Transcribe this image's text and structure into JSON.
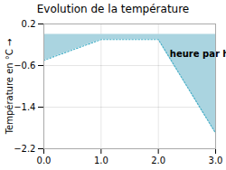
{
  "chart_data": {
    "type": "area",
    "title": "Evolution de la température",
    "y_label": "Température en °C",
    "x": [
      0,
      1,
      2,
      3
    ],
    "series": [
      {
        "type": "area",
        "color": "#aad4e0",
        "values": [
          -0.5,
          -0.1,
          -0.1,
          -1.9
        ]
      },
      {
        "type": "line",
        "color": "#4ab0c8",
        "line_style": "dotted",
        "values": [
          -0.5,
          -0.1,
          -0.1,
          -1.9
        ]
      }
    ],
    "xlim": [
      0,
      3
    ],
    "xticks": [
      0,
      1,
      2,
      3
    ],
    "ylim": [
      -2.2,
      0.2
    ],
    "yticks": [
      0.2,
      -0.6,
      -1.4,
      -2.2
    ],
    "grid": true,
    "annotations": [
      {
        "text": "heure par heure",
        "x": 2.2,
        "y": -0.38
      }
    ]
  }
}
